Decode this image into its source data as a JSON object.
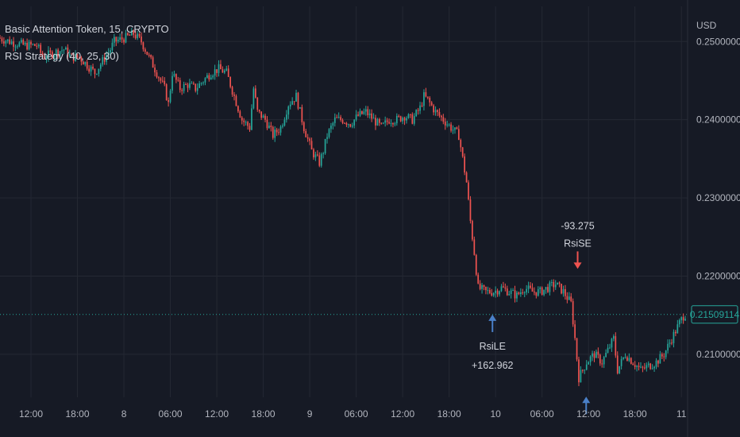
{
  "header": {
    "symbol_line": "Basic Attention Token, 15, CRYPTO",
    "strategy_line": "RSI Strategy (40, 25, 30)",
    "currency": "USD"
  },
  "colors": {
    "background": "#161a25",
    "up": "#26a69a",
    "down": "#ef5350",
    "arrow": "#4a80c8",
    "price_tag": "#26a69a"
  },
  "chart_data": {
    "type": "candlestick",
    "ylim": [
      0.2045,
      0.2545
    ],
    "y_ticks": [
      "0.25000000",
      "0.24000000",
      "0.23000000",
      "0.22000000",
      "0.21000000"
    ],
    "y_tick_values": [
      0.25,
      0.24,
      0.23,
      0.22,
      0.21
    ],
    "x_ticks": [
      "12:00",
      "18:00",
      "8",
      "06:00",
      "12:00",
      "18:00",
      "9",
      "06:00",
      "12:00",
      "18:00",
      "10",
      "06:00",
      "12:00",
      "18:00",
      "11"
    ],
    "x_tick_hours": [
      12,
      18,
      24,
      30,
      36,
      42,
      48,
      54,
      60,
      66,
      72,
      78,
      84,
      90,
      96
    ],
    "x_hours_range": [
      8.0,
      96.8
    ],
    "last_price": "0.21509114",
    "last_price_value": 0.21509,
    "trend_points": [
      [
        8.0,
        0.2505
      ],
      [
        9.5,
        0.25
      ],
      [
        11.5,
        0.2495
      ],
      [
        13.0,
        0.2495
      ],
      [
        13.8,
        0.248
      ],
      [
        15.0,
        0.2485
      ],
      [
        16.5,
        0.249
      ],
      [
        17.5,
        0.248
      ],
      [
        18.5,
        0.248
      ],
      [
        19.5,
        0.247
      ],
      [
        20.5,
        0.246
      ],
      [
        21.5,
        0.2475
      ],
      [
        22.5,
        0.249
      ],
      [
        23.0,
        0.25
      ],
      [
        24.5,
        0.2505
      ],
      [
        25.5,
        0.251
      ],
      [
        26.5,
        0.25
      ],
      [
        27.5,
        0.248
      ],
      [
        28.5,
        0.246
      ],
      [
        29.5,
        0.244
      ],
      [
        30.0,
        0.242
      ],
      [
        30.5,
        0.246
      ],
      [
        31.5,
        0.244
      ],
      [
        32.5,
        0.2445
      ],
      [
        33.5,
        0.244
      ],
      [
        34.5,
        0.245
      ],
      [
        35.5,
        0.246
      ],
      [
        36.5,
        0.2465
      ],
      [
        37.5,
        0.246
      ],
      [
        38.5,
        0.243
      ],
      [
        39.5,
        0.24
      ],
      [
        40.5,
        0.239
      ],
      [
        41.0,
        0.244
      ],
      [
        41.5,
        0.241
      ],
      [
        42.5,
        0.24
      ],
      [
        43.5,
        0.238
      ],
      [
        44.5,
        0.239
      ],
      [
        45.5,
        0.242
      ],
      [
        46.5,
        0.243
      ],
      [
        47.5,
        0.239
      ],
      [
        48.5,
        0.236
      ],
      [
        49.5,
        0.2345
      ],
      [
        50.0,
        0.236
      ],
      [
        50.5,
        0.238
      ],
      [
        51.5,
        0.24
      ],
      [
        52.5,
        0.24
      ],
      [
        53.5,
        0.2395
      ],
      [
        54.5,
        0.2405
      ],
      [
        55.5,
        0.241
      ],
      [
        56.5,
        0.24
      ],
      [
        57.5,
        0.239
      ],
      [
        58.5,
        0.24
      ],
      [
        59.5,
        0.24
      ],
      [
        60.5,
        0.2405
      ],
      [
        61.5,
        0.24
      ],
      [
        62.5,
        0.2415
      ],
      [
        63.0,
        0.243
      ],
      [
        63.5,
        0.2425
      ],
      [
        64.5,
        0.241
      ],
      [
        65.5,
        0.24
      ],
      [
        66.5,
        0.239
      ],
      [
        67.5,
        0.238
      ],
      [
        68.0,
        0.235
      ],
      [
        68.5,
        0.232
      ],
      [
        69.0,
        0.227
      ],
      [
        69.5,
        0.223
      ],
      [
        70.0,
        0.2185
      ],
      [
        71.0,
        0.218
      ],
      [
        72.0,
        0.218
      ],
      [
        73.0,
        0.2185
      ],
      [
        74.0,
        0.218
      ],
      [
        75.0,
        0.2175
      ],
      [
        76.0,
        0.2185
      ],
      [
        77.0,
        0.218
      ],
      [
        78.0,
        0.218
      ],
      [
        79.0,
        0.2185
      ],
      [
        80.0,
        0.219
      ],
      [
        81.0,
        0.218
      ],
      [
        82.0,
        0.2165
      ],
      [
        82.5,
        0.212
      ],
      [
        83.0,
        0.207
      ],
      [
        84.0,
        0.209
      ],
      [
        85.0,
        0.21
      ],
      [
        86.0,
        0.209
      ],
      [
        87.0,
        0.211
      ],
      [
        87.5,
        0.212
      ],
      [
        88.0,
        0.208
      ],
      [
        89.0,
        0.21
      ],
      [
        90.0,
        0.209
      ],
      [
        91.0,
        0.208
      ],
      [
        92.0,
        0.2085
      ],
      [
        93.0,
        0.209
      ],
      [
        94.0,
        0.21
      ],
      [
        95.0,
        0.212
      ],
      [
        96.0,
        0.214
      ],
      [
        96.6,
        0.21509
      ]
    ],
    "signals": [
      {
        "kind": "long",
        "label": "RsiLE",
        "profit": "+162.962",
        "hour": 71.6,
        "price": 0.2165
      },
      {
        "kind": "short",
        "label": "RsiSE",
        "profit": "-93.275",
        "hour": 82.6,
        "price": 0.2195
      },
      {
        "kind": "long",
        "label": "",
        "profit": "",
        "hour": 83.7,
        "price": 0.206
      }
    ]
  }
}
